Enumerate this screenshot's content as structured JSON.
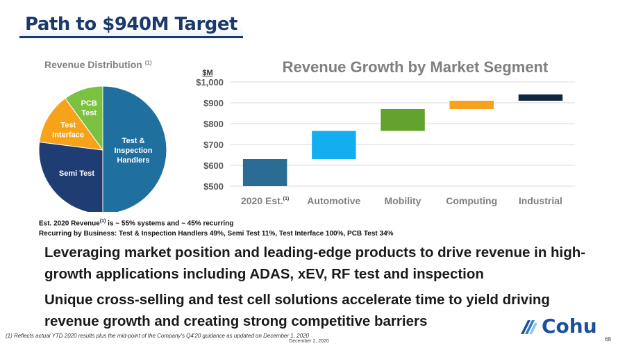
{
  "title": "Path to $940M Target",
  "chart_data": [
    {
      "type": "pie",
      "title": "Revenue Distribution",
      "title_superscript": "(1)",
      "slices": [
        {
          "label": "Test & Inspection Handlers",
          "value": 50,
          "color": "#1f6f9f"
        },
        {
          "label": "Semi Test",
          "value": 27,
          "color": "#1f3d73"
        },
        {
          "label": "Test Interface",
          "value": 13,
          "color": "#f6a31b"
        },
        {
          "label": "PCB Test",
          "value": 10,
          "color": "#7cc242"
        }
      ]
    },
    {
      "type": "bar",
      "subtype": "waterfall",
      "title": "Revenue Growth by Market Segment",
      "ylabel": "$M",
      "ylim": [
        500,
        1000
      ],
      "yticks": [
        "$500",
        "$600",
        "$700",
        "$800",
        "$900",
        "$1,000"
      ],
      "categories": [
        "2020 Est.",
        "Automotive",
        "Mobility",
        "Computing",
        "Industrial"
      ],
      "category_superscripts": [
        "(1)",
        "",
        "",
        "",
        ""
      ],
      "bars": [
        {
          "start": 500,
          "end": 630,
          "color": "#2b6c95"
        },
        {
          "start": 630,
          "end": 765,
          "color": "#13aef0"
        },
        {
          "start": 765,
          "end": 870,
          "color": "#62a32e"
        },
        {
          "start": 870,
          "end": 910,
          "color": "#f6a21e"
        },
        {
          "start": 910,
          "end": 940,
          "color": "#10253f"
        }
      ]
    }
  ],
  "notes": {
    "line1_pre": "Est. 2020 Revenue",
    "line1_sup": "(1)",
    "line1_post": " is ~ 55% systems and ~ 45% recurring",
    "line2": "Recurring by Business: Test & Inspection Handlers 49%, Semi Test 11%, Test Interface 100%, PCB Test 34%"
  },
  "bullets": [
    "Leveraging market position and leading-edge products to drive revenue in high-growth applications including ADAS, xEV, RF test and inspection",
    "Unique cross-selling and test cell solutions accelerate time to yield driving revenue growth and creating strong competitive barriers"
  ],
  "footnote": "(1)   Reflects actual YTD 2020 results plus the mid-point of the Company's Q4'20 guidance as updated on December 1, 2020",
  "date": "December 2, 2020",
  "page_number": "68",
  "logo_text": "Cohu"
}
